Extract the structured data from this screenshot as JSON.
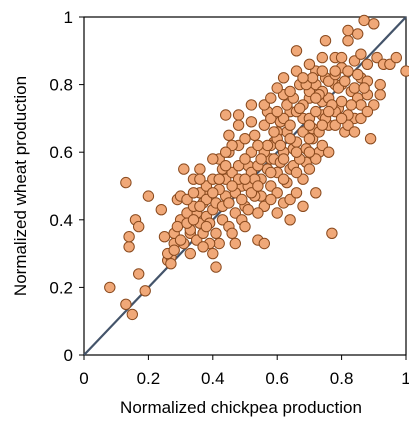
{
  "chart_data": {
    "type": "scatter",
    "title": "",
    "xlabel": "Normalized chickpea production",
    "ylabel": "Normalized wheat production",
    "xlim": [
      0,
      1
    ],
    "ylim": [
      0,
      1
    ],
    "xticks": [
      "0",
      "0.2",
      "0.4",
      "0.6",
      "0.8",
      "1"
    ],
    "yticks": [
      "0",
      "0.2",
      "0.4",
      "0.6",
      "0.8",
      "1"
    ],
    "grid": false,
    "reference_line": "y = x",
    "colors": {
      "marker_fill": "#F0A878",
      "marker_edge": "#8A4A1E",
      "reference_line": "#44546A"
    },
    "series": [
      {
        "points": [
          [
            0.08,
            0.2
          ],
          [
            0.13,
            0.15
          ],
          [
            0.15,
            0.12
          ],
          [
            0.14,
            0.32
          ],
          [
            0.14,
            0.35
          ],
          [
            0.13,
            0.51
          ],
          [
            0.16,
            0.4
          ],
          [
            0.17,
            0.38
          ],
          [
            0.17,
            0.24
          ],
          [
            0.19,
            0.19
          ],
          [
            0.2,
            0.47
          ],
          [
            0.24,
            0.43
          ],
          [
            0.25,
            0.35
          ],
          [
            0.26,
            0.28
          ],
          [
            0.27,
            0.29
          ],
          [
            0.28,
            0.33
          ],
          [
            0.29,
            0.46
          ],
          [
            0.3,
            0.47
          ],
          [
            0.31,
            0.55
          ],
          [
            0.33,
            0.36
          ],
          [
            0.34,
            0.52
          ],
          [
            0.36,
            0.39
          ],
          [
            0.38,
            0.41
          ],
          [
            0.39,
            0.48
          ],
          [
            0.4,
            0.43
          ],
          [
            0.41,
            0.26
          ],
          [
            0.42,
            0.33
          ],
          [
            0.43,
            0.55
          ],
          [
            0.44,
            0.47
          ],
          [
            0.45,
            0.6
          ],
          [
            0.47,
            0.33
          ],
          [
            0.48,
            0.62
          ],
          [
            0.49,
            0.5
          ],
          [
            0.5,
            0.44
          ],
          [
            0.51,
            0.56
          ],
          [
            0.52,
            0.6
          ],
          [
            0.53,
            0.65
          ],
          [
            0.54,
            0.34
          ],
          [
            0.55,
            0.47
          ],
          [
            0.56,
            0.33
          ],
          [
            0.57,
            0.72
          ],
          [
            0.58,
            0.58
          ],
          [
            0.59,
            0.63
          ],
          [
            0.6,
            0.54
          ],
          [
            0.61,
            0.69
          ],
          [
            0.62,
            0.77
          ],
          [
            0.63,
            0.66
          ],
          [
            0.64,
            0.72
          ],
          [
            0.65,
            0.61
          ],
          [
            0.66,
            0.9
          ],
          [
            0.67,
            0.8
          ],
          [
            0.68,
            0.7
          ],
          [
            0.69,
            0.57
          ],
          [
            0.7,
            0.76
          ],
          [
            0.71,
            0.64
          ],
          [
            0.72,
            0.84
          ],
          [
            0.73,
            0.6
          ],
          [
            0.74,
            0.71
          ],
          [
            0.75,
            0.82
          ],
          [
            0.76,
            0.68
          ],
          [
            0.77,
            0.36
          ],
          [
            0.78,
            0.8
          ],
          [
            0.79,
            0.73
          ],
          [
            0.8,
            0.85
          ],
          [
            0.81,
            0.66
          ],
          [
            0.82,
            0.93
          ],
          [
            0.83,
            0.78
          ],
          [
            0.84,
            0.7
          ],
          [
            0.85,
            0.76
          ],
          [
            0.86,
            0.82
          ],
          [
            0.87,
            0.99
          ],
          [
            0.88,
            0.86
          ],
          [
            0.89,
            0.64
          ],
          [
            0.9,
            0.98
          ],
          [
            0.91,
            0.88
          ],
          [
            0.92,
            0.77
          ],
          [
            0.93,
            0.86
          ],
          [
            0.95,
            0.86
          ],
          [
            0.97,
            0.88
          ],
          [
            1.0,
            0.84
          ],
          [
            0.45,
            0.65
          ],
          [
            0.44,
            0.71
          ],
          [
            0.48,
            0.71
          ],
          [
            0.52,
            0.69
          ],
          [
            0.56,
            0.68
          ],
          [
            0.6,
            0.66
          ],
          [
            0.62,
            0.6
          ],
          [
            0.64,
            0.55
          ],
          [
            0.66,
            0.63
          ],
          [
            0.68,
            0.66
          ],
          [
            0.7,
            0.7
          ],
          [
            0.72,
            0.72
          ],
          [
            0.74,
            0.75
          ],
          [
            0.76,
            0.76
          ],
          [
            0.78,
            0.72
          ],
          [
            0.8,
            0.75
          ],
          [
            0.82,
            0.71
          ],
          [
            0.84,
            0.79
          ],
          [
            0.86,
            0.74
          ],
          [
            0.88,
            0.77
          ],
          [
            0.58,
            0.5
          ],
          [
            0.6,
            0.48
          ],
          [
            0.62,
            0.45
          ],
          [
            0.64,
            0.46
          ],
          [
            0.66,
            0.48
          ],
          [
            0.68,
            0.52
          ],
          [
            0.7,
            0.55
          ],
          [
            0.72,
            0.58
          ],
          [
            0.74,
            0.62
          ],
          [
            0.76,
            0.6
          ],
          [
            0.35,
            0.42
          ],
          [
            0.37,
            0.45
          ],
          [
            0.39,
            0.39
          ],
          [
            0.41,
            0.36
          ],
          [
            0.43,
            0.4
          ],
          [
            0.45,
            0.38
          ],
          [
            0.47,
            0.42
          ],
          [
            0.49,
            0.4
          ],
          [
            0.51,
            0.43
          ],
          [
            0.53,
            0.47
          ],
          [
            0.55,
            0.52
          ],
          [
            0.57,
            0.55
          ],
          [
            0.59,
            0.58
          ],
          [
            0.61,
            0.57
          ],
          [
            0.63,
            0.51
          ],
          [
            0.65,
            0.56
          ],
          [
            0.67,
            0.58
          ],
          [
            0.69,
            0.61
          ],
          [
            0.71,
            0.67
          ],
          [
            0.73,
            0.66
          ],
          [
            0.3,
            0.4
          ],
          [
            0.32,
            0.42
          ],
          [
            0.34,
            0.44
          ],
          [
            0.36,
            0.48
          ],
          [
            0.38,
            0.5
          ],
          [
            0.4,
            0.52
          ],
          [
            0.42,
            0.49
          ],
          [
            0.44,
            0.52
          ],
          [
            0.46,
            0.54
          ],
          [
            0.48,
            0.56
          ],
          [
            0.5,
            0.58
          ],
          [
            0.52,
            0.54
          ],
          [
            0.54,
            0.56
          ],
          [
            0.56,
            0.6
          ],
          [
            0.58,
            0.62
          ],
          [
            0.6,
            0.64
          ],
          [
            0.62,
            0.7
          ],
          [
            0.64,
            0.68
          ],
          [
            0.66,
            0.72
          ],
          [
            0.68,
            0.74
          ],
          [
            0.7,
            0.78
          ],
          [
            0.72,
            0.8
          ],
          [
            0.74,
            0.78
          ],
          [
            0.76,
            0.81
          ],
          [
            0.78,
            0.83
          ],
          [
            0.8,
            0.8
          ],
          [
            0.82,
            0.84
          ],
          [
            0.84,
            0.87
          ],
          [
            0.86,
            0.89
          ],
          [
            0.88,
            0.81
          ],
          [
            0.28,
            0.36
          ],
          [
            0.31,
            0.33
          ],
          [
            0.33,
            0.3
          ],
          [
            0.35,
            0.34
          ],
          [
            0.37,
            0.36
          ],
          [
            0.39,
            0.33
          ],
          [
            0.41,
            0.45
          ],
          [
            0.43,
            0.44
          ],
          [
            0.45,
            0.45
          ],
          [
            0.47,
            0.48
          ],
          [
            0.49,
            0.46
          ],
          [
            0.51,
            0.5
          ],
          [
            0.53,
            0.52
          ],
          [
            0.55,
            0.58
          ],
          [
            0.57,
            0.62
          ],
          [
            0.59,
            0.66
          ],
          [
            0.61,
            0.62
          ],
          [
            0.63,
            0.74
          ],
          [
            0.65,
            0.76
          ],
          [
            0.67,
            0.73
          ],
          [
            0.69,
            0.8
          ],
          [
            0.71,
            0.82
          ],
          [
            0.73,
            0.77
          ],
          [
            0.75,
            0.7
          ],
          [
            0.77,
            0.74
          ],
          [
            0.79,
            0.79
          ],
          [
            0.81,
            0.81
          ],
          [
            0.83,
            0.74
          ],
          [
            0.85,
            0.83
          ],
          [
            0.87,
            0.79
          ],
          [
            0.42,
            0.58
          ],
          [
            0.46,
            0.62
          ],
          [
            0.5,
            0.64
          ],
          [
            0.54,
            0.62
          ],
          [
            0.58,
            0.7
          ],
          [
            0.62,
            0.82
          ],
          [
            0.66,
            0.84
          ],
          [
            0.7,
            0.86
          ],
          [
            0.74,
            0.88
          ],
          [
            0.78,
            0.88
          ],
          [
            0.36,
            0.55
          ],
          [
            0.4,
            0.58
          ],
          [
            0.44,
            0.6
          ],
          [
            0.48,
            0.52
          ],
          [
            0.52,
            0.48
          ],
          [
            0.56,
            0.44
          ],
          [
            0.6,
            0.42
          ],
          [
            0.64,
            0.4
          ],
          [
            0.68,
            0.44
          ],
          [
            0.72,
            0.48
          ],
          [
            0.33,
            0.37
          ],
          [
            0.37,
            0.32
          ],
          [
            0.4,
            0.3
          ],
          [
            0.46,
            0.36
          ],
          [
            0.5,
            0.38
          ],
          [
            0.54,
            0.42
          ],
          [
            0.58,
            0.46
          ],
          [
            0.62,
            0.52
          ],
          [
            0.66,
            0.54
          ],
          [
            0.7,
            0.6
          ],
          [
            0.26,
            0.3
          ],
          [
            0.27,
            0.27
          ],
          [
            0.29,
            0.38
          ],
          [
            0.32,
            0.46
          ],
          [
            0.34,
            0.48
          ],
          [
            0.36,
            0.52
          ],
          [
            0.38,
            0.46
          ],
          [
            0.42,
            0.52
          ],
          [
            0.46,
            0.5
          ],
          [
            0.5,
            0.52
          ],
          [
            0.54,
            0.5
          ],
          [
            0.58,
            0.54
          ],
          [
            0.62,
            0.58
          ],
          [
            0.66,
            0.6
          ],
          [
            0.7,
            0.64
          ],
          [
            0.74,
            0.68
          ],
          [
            0.78,
            0.68
          ],
          [
            0.82,
            0.68
          ],
          [
            0.86,
            0.7
          ],
          [
            0.9,
            0.74
          ],
          [
            0.6,
            0.72
          ],
          [
            0.64,
            0.78
          ],
          [
            0.68,
            0.82
          ],
          [
            0.72,
            0.76
          ],
          [
            0.76,
            0.72
          ],
          [
            0.8,
            0.7
          ],
          [
            0.84,
            0.66
          ],
          [
            0.88,
            0.72
          ],
          [
            0.92,
            0.8
          ],
          [
            0.56,
            0.74
          ],
          [
            0.52,
            0.74
          ],
          [
            0.48,
            0.68
          ],
          [
            0.44,
            0.56
          ],
          [
            0.4,
            0.48
          ],
          [
            0.36,
            0.44
          ],
          [
            0.32,
            0.39
          ],
          [
            0.3,
            0.34
          ],
          [
            0.28,
            0.31
          ],
          [
            0.34,
            0.4
          ],
          [
            0.38,
            0.38
          ],
          [
            0.82,
            0.96
          ],
          [
            0.85,
            0.95
          ],
          [
            0.75,
            0.93
          ],
          [
            0.6,
            0.79
          ],
          [
            0.58,
            0.76
          ],
          [
            0.64,
            0.64
          ],
          [
            0.7,
            0.68
          ],
          [
            0.74,
            0.84
          ],
          [
            0.78,
            0.84
          ],
          [
            0.8,
            0.88
          ]
        ]
      }
    ]
  }
}
